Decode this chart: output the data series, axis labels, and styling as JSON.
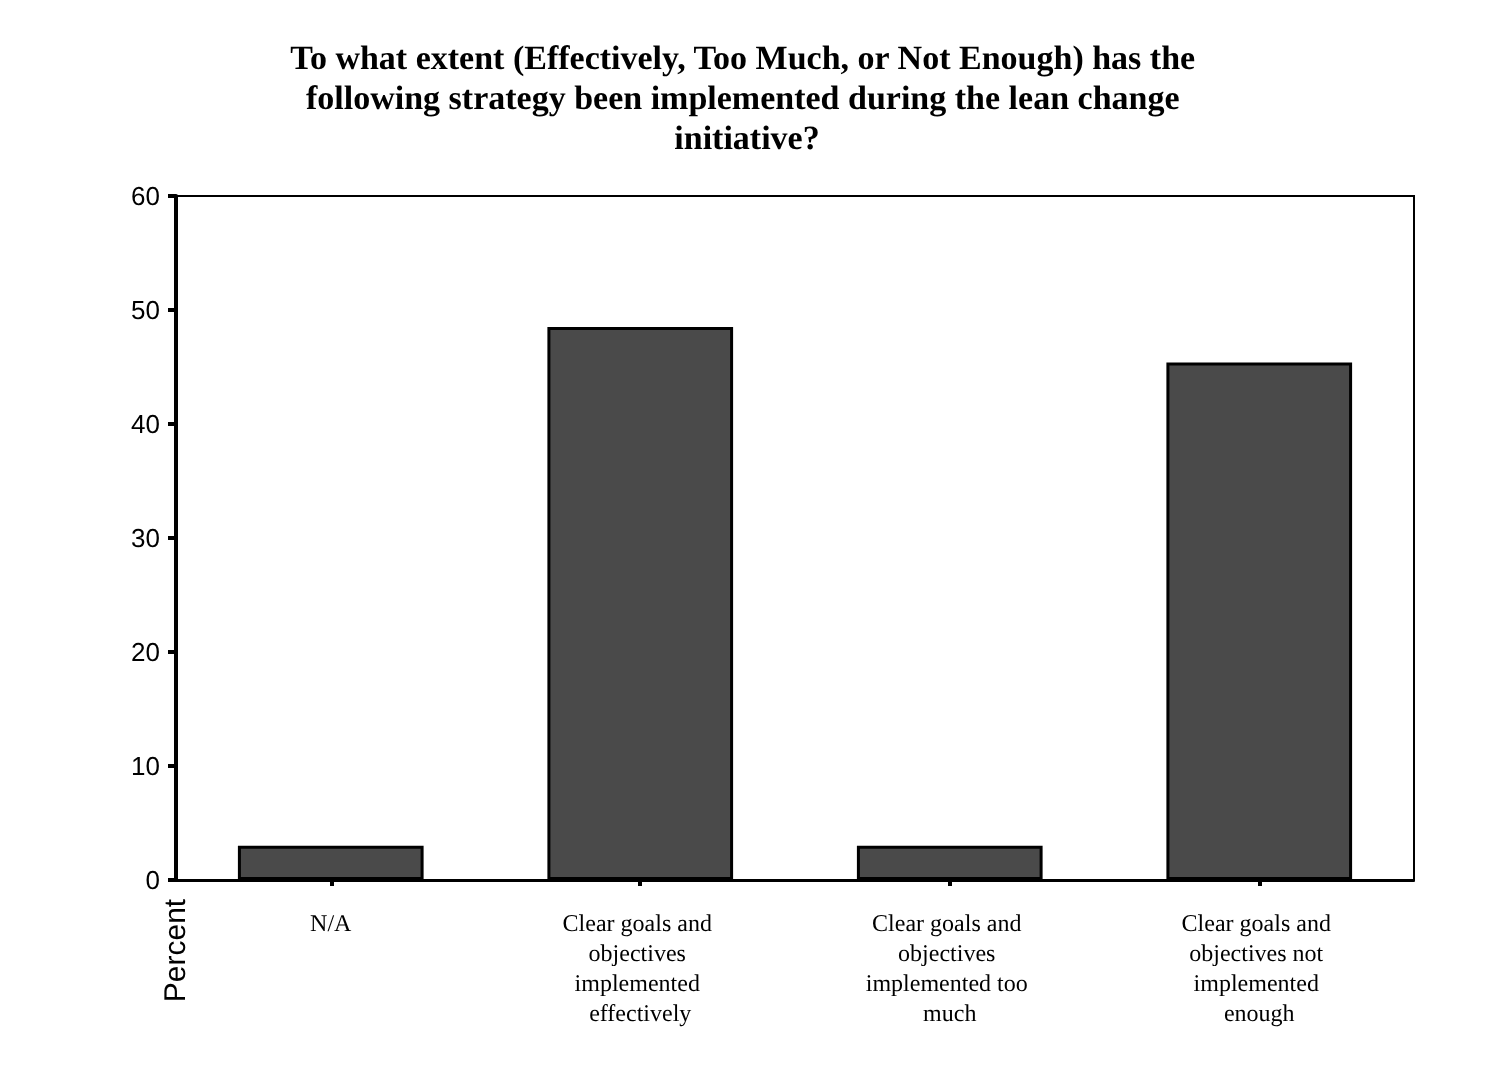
{
  "chart_data": {
    "type": "bar",
    "title": "To what extent (Effectively, Too Much, or Not Enough) has the following strategy been implemented during the lean change initiative?",
    "ylabel": "Percent",
    "categories": [
      "N/A",
      "Clear goals and objectives implemented effectively",
      "Clear goals and objectives implemented too much",
      "Clear goals and objectives not implemented enough"
    ],
    "values": [
      3.0,
      48.5,
      3.0,
      45.4
    ],
    "color": "#4a4a4a",
    "ylim": [
      0,
      60
    ],
    "yticks": [
      0,
      10,
      20,
      30,
      40,
      50,
      60
    ],
    "grid": false
  }
}
